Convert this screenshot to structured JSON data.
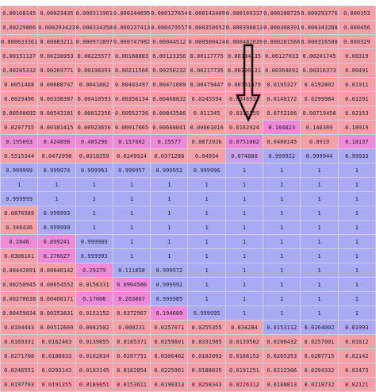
{
  "colors": {
    "high_pink": "#f4a0a6",
    "transition_magenta": "#f08ad8",
    "low_blue": "#a9a9f4",
    "mixed_violet": "#c9a3e8",
    "arrow": "#111111"
  },
  "annotation": {
    "icon": "down-arrow-icon"
  },
  "rows": [
    {
      "c": [
        "r",
        "r",
        "r",
        "r",
        "r",
        "r",
        "r",
        "r",
        "r",
        "r"
      ],
      "v": [
        "0.00168145",
        "0.00023435",
        "0.000311961",
        "0.000244695",
        "0.000127654",
        "0.000143409",
        "0.000169337",
        "0.000288725",
        "0.000293776",
        "0.000153"
      ]
    },
    {
      "c": [
        "r",
        "r",
        "r",
        "r",
        "r",
        "r",
        "r",
        "r",
        "r",
        "r"
      ],
      "v": [
        "0.00229866",
        "0.000283433",
        "0.000334358",
        "0.000237413",
        "0.000479557",
        "0.000358652",
        "0.000398813",
        "0.000308391",
        "0.000343288",
        "0.000456"
      ]
    },
    {
      "c": [
        "r",
        "r",
        "r",
        "r",
        "r",
        "r",
        "r",
        "r",
        "r",
        "r"
      ],
      "v": [
        "0.000633361",
        "0.00083211",
        "0.000972897",
        "0.000747982",
        "0.00044512",
        "0.000500424",
        "0.000482026",
        "0.000281566",
        "0.000316588",
        "0.000329"
      ]
    },
    {
      "c": [
        "r",
        "r",
        "r",
        "r",
        "r",
        "r",
        "r",
        "r",
        "r",
        "r"
      ],
      "v": [
        "0.00151137",
        "0.00238953",
        "0.00225577",
        "0.00168803",
        "0.00123356",
        "0.00117775",
        "0.00184135",
        "0.00127033",
        "0.00201745",
        "0.00319"
      ]
    },
    {
      "c": [
        "r",
        "r",
        "r",
        "r",
        "r",
        "r",
        "r",
        "r",
        "r",
        "r"
      ],
      "v": [
        "0.00205332",
        "0.00269771",
        "0.00198393",
        "0.00211566",
        "0.00250232",
        "0.00217735",
        "0.00306131",
        "0.00364692",
        "0.00316373",
        "0.00491"
      ]
    },
    {
      "c": [
        "r",
        "r",
        "r",
        "r",
        "r",
        "r",
        "r",
        "r",
        "r",
        "r"
      ],
      "v": [
        "0.0051488",
        "0.00688747",
        "0.0041802",
        "0.00403497",
        "0.00471689",
        "0.00479447",
        "0.00761379",
        "0.0195327",
        "0.0192802",
        "0.01911"
      ]
    },
    {
      "c": [
        "r",
        "r",
        "r",
        "r",
        "r",
        "r",
        "r",
        "r",
        "r",
        "r"
      ],
      "v": [
        "0.0029496",
        "0.00338387",
        "0.00410593",
        "0.00356134",
        "0.00468832",
        "0.0245594",
        "0.0346932",
        "0.0148172",
        "0.0299984",
        "0.01291"
      ]
    },
    {
      "c": [
        "r",
        "r",
        "r",
        "r",
        "r",
        "r",
        "r",
        "r",
        "r",
        "r"
      ],
      "v": [
        "0.00500092",
        "0.00543181",
        "0.00812356",
        "0.00952736",
        "0.00843586",
        "0.011345",
        "0.0315159",
        "0.0752166",
        "0.00719458",
        "0.02153"
      ]
    },
    {
      "c": [
        "r",
        "r",
        "r",
        "r",
        "r",
        "r",
        "r",
        "m",
        "r",
        "r"
      ],
      "v": [
        "0.0297755",
        "0.00381415",
        "0.00923656",
        "0.00917665",
        "0.00660041",
        "0.00661016",
        "0.0162924",
        "0.184823",
        "0.146369",
        "0.18919"
      ]
    },
    {
      "c": [
        "m",
        "m",
        "m",
        "m",
        "m",
        "r",
        "m",
        "r",
        "r",
        "m"
      ],
      "v": [
        "0.195093",
        "0.424898",
        "0.485296",
        "0.157082",
        "0.25577",
        "0.0872026",
        "0.0751002",
        "0.0480145",
        "0.0919",
        "0.18137"
      ]
    },
    {
      "c": [
        "r",
        "r",
        "r",
        "r",
        "r",
        "r",
        "p",
        "b",
        "b",
        "b"
      ],
      "v": [
        "0.5515344",
        "0.0472998",
        "0.0318359",
        "0.0249924",
        "0.0371286",
        "0.04954",
        "0.074888",
        "0.999922",
        "0.999944",
        "0.99933"
      ]
    },
    {
      "c": [
        "b",
        "b",
        "b",
        "b",
        "b",
        "b",
        "b",
        "b",
        "b",
        "b"
      ],
      "v": [
        "0.999999",
        "0.999974",
        "0.999963",
        "0.999957",
        "0.999952",
        "0.999996",
        "1",
        "1",
        "1",
        "1"
      ]
    },
    {
      "c": [
        "b",
        "b",
        "b",
        "b",
        "b",
        "b",
        "b",
        "b",
        "b",
        "b"
      ],
      "v": [
        "1",
        "1",
        "1",
        "1",
        "1",
        "1",
        "1",
        "1",
        "1",
        "1"
      ]
    },
    {
      "c": [
        "b",
        "b",
        "b",
        "b",
        "b",
        "b",
        "b",
        "b",
        "b",
        "b"
      ],
      "v": [
        "0.999999",
        "1",
        "1",
        "1",
        "1",
        "1",
        "1",
        "1",
        "1",
        "1"
      ]
    },
    {
      "c": [
        "r",
        "b",
        "b",
        "b",
        "b",
        "b",
        "b",
        "b",
        "b",
        "b"
      ],
      "v": [
        "0.0876589",
        "0.999993",
        "1",
        "1",
        "1",
        "1",
        "1",
        "1",
        "1",
        "1"
      ]
    },
    {
      "c": [
        "r",
        "b",
        "b",
        "b",
        "b",
        "b",
        "b",
        "b",
        "b",
        "b"
      ],
      "v": [
        "0.346436",
        "0.999999",
        "1",
        "1",
        "1",
        "1",
        "1",
        "1",
        "1",
        "1"
      ]
    },
    {
      "c": [
        "m",
        "m",
        "b",
        "b",
        "b",
        "b",
        "b",
        "b",
        "b",
        "b"
      ],
      "v": [
        "0.2846",
        "0.899241",
        "0.999989",
        "1",
        "1",
        "1",
        "1",
        "1",
        "1",
        "1"
      ]
    },
    {
      "c": [
        "r",
        "m",
        "b",
        "b",
        "b",
        "b",
        "b",
        "b",
        "b",
        "b"
      ],
      "v": [
        "0.0306161",
        "0.276027",
        "0.999993",
        "1",
        "1",
        "1",
        "1",
        "1",
        "1",
        "1"
      ]
    },
    {
      "c": [
        "r",
        "r",
        "m",
        "b",
        "b",
        "b",
        "b",
        "b",
        "b",
        "b"
      ],
      "v": [
        "0.00442091",
        "0.00640142",
        "0.29279",
        "0.111858",
        "0.999972",
        "1",
        "1",
        "1",
        "1",
        "1"
      ]
    },
    {
      "c": [
        "r",
        "r",
        "r",
        "m",
        "b",
        "b",
        "b",
        "b",
        "b",
        "b"
      ],
      "v": [
        "0.00250945",
        "0.00654552",
        "0.0156331",
        "0.0904586",
        "0.999992",
        "1",
        "1",
        "1",
        "1",
        "1"
      ]
    },
    {
      "c": [
        "r",
        "r",
        "m",
        "m",
        "b",
        "b",
        "b",
        "b",
        "b",
        "b"
      ],
      "v": [
        "0.00270638",
        "0.00408171",
        "0.17008",
        "0.263867",
        "0.999985",
        "1",
        "1",
        "1",
        "1",
        "1"
      ]
    },
    {
      "c": [
        "r",
        "r",
        "r",
        "r",
        "m",
        "b",
        "b",
        "b",
        "b",
        "b"
      ],
      "v": [
        "0.00459034",
        "0.00353831",
        "0.0153152",
        "0.0372967",
        "0.194609",
        "0.999995",
        "1",
        "1",
        "1",
        "1"
      ]
    },
    {
      "c": [
        "r",
        "r",
        "r",
        "r",
        "r",
        "r",
        "r",
        "b",
        "b",
        "b"
      ],
      "v": [
        "0.0104443",
        "0.00512669",
        "0.0082502",
        "0.000231",
        "0.0257071",
        "0.0255355",
        "0.034284",
        "0.0153112",
        "0.0264002",
        "0.01993"
      ]
    },
    {
      "c": [
        "r",
        "r",
        "r",
        "r",
        "r",
        "r",
        "r",
        "r",
        "r",
        "r"
      ],
      "v": [
        "0.0169331",
        "0.0162463",
        "0.0139855",
        "0.0185371",
        "0.0259601",
        "0.0331985",
        "0.0139502",
        "0.0206432",
        "0.0257001",
        "0.01612"
      ]
    },
    {
      "c": [
        "r",
        "r",
        "r",
        "r",
        "r",
        "r",
        "r",
        "r",
        "r",
        "r"
      ],
      "v": [
        "0.0271708",
        "0.0188833",
        "0.0182834",
        "0.0207751",
        "0.0306402",
        "0.0182093",
        "0.0168153",
        "0.0265353",
        "0.0287715",
        "0.02142"
      ]
    },
    {
      "c": [
        "r",
        "r",
        "r",
        "r",
        "r",
        "r",
        "r",
        "r",
        "r",
        "r"
      ],
      "v": [
        "0.0246551",
        "0.0293143",
        "0.0183145",
        "0.0182854",
        "0.0225961",
        "0.0188035",
        "0.0191251",
        "0.0212306",
        "0.0294332",
        "0.02473"
      ]
    },
    {
      "c": [
        "r",
        "r",
        "r",
        "r",
        "r",
        "r",
        "r",
        "r",
        "r",
        "r"
      ],
      "v": [
        "0.0197703",
        "0.0191355",
        "0.0189051",
        "0.0153611",
        "0.0190313",
        "0.0258343",
        "0.0226312",
        "0.0188813",
        "0.0218732",
        "0.02121"
      ]
    }
  ]
}
